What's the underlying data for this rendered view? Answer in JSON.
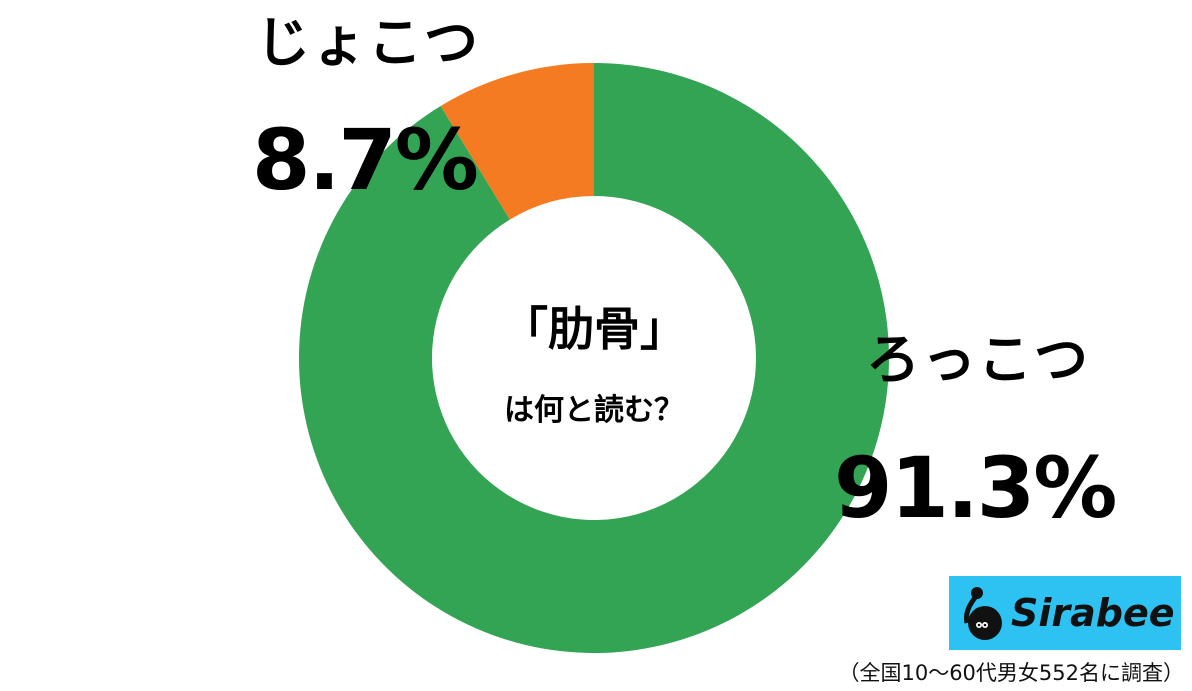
{
  "chart_data": {
    "type": "pie",
    "variant": "donut",
    "title": "「肋骨」は何と読む？",
    "title_line1": "「肋骨」",
    "title_line2": "は何と読む？",
    "categories": [
      "ろっこつ",
      "じょこつ"
    ],
    "values": [
      91.3,
      8.7
    ],
    "value_labels": [
      "91.3%",
      "8.7%"
    ],
    "colors": [
      "#33A453",
      "#F47B22"
    ],
    "start_angle": "12 o'clock",
    "legend": "none (direct labels)"
  },
  "labels": {
    "rokkotsu": {
      "name": "ろっこつ",
      "pct": "91.3%"
    },
    "jokotsu": {
      "name": "じょこつ",
      "pct": "8.7%"
    }
  },
  "logo": {
    "text": "Sirabee",
    "bg_color": "#2DC2F2"
  },
  "footnote": "（全国10〜60代男女552名に調査）"
}
